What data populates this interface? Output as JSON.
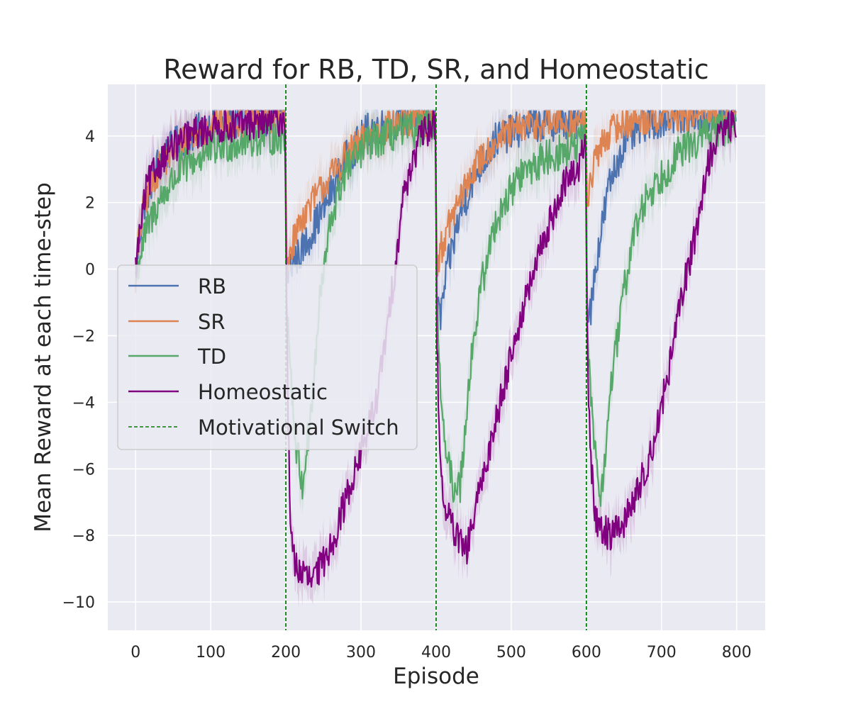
{
  "chart_data": {
    "type": "line",
    "title": "Reward for RB, TD, SR, and Homeostatic",
    "xlabel": "Episode",
    "ylabel": "Mean Reward at each time-step",
    "xlim": [
      -37,
      838
    ],
    "ylim": [
      -10.85,
      5.55
    ],
    "xticks": [
      0,
      100,
      200,
      300,
      400,
      500,
      600,
      700,
      800
    ],
    "xtick_labels": [
      "0",
      "100",
      "200",
      "300",
      "400",
      "500",
      "600",
      "700",
      "800"
    ],
    "yticks": [
      -10,
      -8,
      -6,
      -4,
      -2,
      0,
      2,
      4
    ],
    "ytick_labels": [
      "−10",
      "−8",
      "−6",
      "−4",
      "−2",
      "0",
      "2",
      "4"
    ],
    "grid": true,
    "legend_position": "center-left",
    "series": [
      {
        "name": "RB",
        "color": "#4c72b0",
        "keypoints": [
          [
            0,
            -0.3
          ],
          [
            5,
            1.0
          ],
          [
            12,
            2.0
          ],
          [
            30,
            3.2
          ],
          [
            60,
            3.9
          ],
          [
            100,
            4.3
          ],
          [
            150,
            4.5
          ],
          [
            199,
            4.6
          ],
          [
            201,
            -0.3
          ],
          [
            205,
            0.1
          ],
          [
            220,
            0.5
          ],
          [
            250,
            1.8
          ],
          [
            280,
            3.3
          ],
          [
            310,
            4.2
          ],
          [
            350,
            4.5
          ],
          [
            399,
            4.6
          ],
          [
            401,
            -1.0
          ],
          [
            405,
            -1.5
          ],
          [
            415,
            0.0
          ],
          [
            430,
            1.5
          ],
          [
            450,
            2.8
          ],
          [
            480,
            3.9
          ],
          [
            520,
            4.3
          ],
          [
            560,
            4.4
          ],
          [
            599,
            4.4
          ],
          [
            601,
            -1.0
          ],
          [
            605,
            -1.3
          ],
          [
            615,
            0.5
          ],
          [
            630,
            2.5
          ],
          [
            650,
            3.8
          ],
          [
            680,
            4.4
          ],
          [
            720,
            4.6
          ],
          [
            799,
            4.6
          ]
        ],
        "noise": 0.55
      },
      {
        "name": "SR",
        "color": "#dd8452",
        "keypoints": [
          [
            0,
            -0.3
          ],
          [
            5,
            1.0
          ],
          [
            12,
            2.0
          ],
          [
            30,
            3.0
          ],
          [
            60,
            3.8
          ],
          [
            100,
            4.3
          ],
          [
            150,
            4.5
          ],
          [
            199,
            4.6
          ],
          [
            201,
            0.2
          ],
          [
            205,
            0.5
          ],
          [
            220,
            1.5
          ],
          [
            250,
            2.5
          ],
          [
            280,
            3.4
          ],
          [
            310,
            4.0
          ],
          [
            350,
            4.4
          ],
          [
            399,
            4.5
          ],
          [
            401,
            0.1
          ],
          [
            405,
            0.5
          ],
          [
            420,
            1.5
          ],
          [
            450,
            3.0
          ],
          [
            480,
            3.9
          ],
          [
            520,
            4.3
          ],
          [
            560,
            4.4
          ],
          [
            599,
            4.4
          ],
          [
            601,
            2.0
          ],
          [
            605,
            2.6
          ],
          [
            615,
            3.5
          ],
          [
            630,
            4.1
          ],
          [
            650,
            4.4
          ],
          [
            700,
            4.6
          ],
          [
            799,
            4.7
          ]
        ],
        "noise": 0.5
      },
      {
        "name": "TD",
        "color": "#55a868",
        "keypoints": [
          [
            0,
            -0.3
          ],
          [
            5,
            0.3
          ],
          [
            12,
            1.0
          ],
          [
            30,
            2.0
          ],
          [
            60,
            3.0
          ],
          [
            100,
            3.6
          ],
          [
            150,
            3.9
          ],
          [
            199,
            4.0
          ],
          [
            201,
            -1.0
          ],
          [
            205,
            -2.5
          ],
          [
            212,
            -5.0
          ],
          [
            222,
            -6.5
          ],
          [
            235,
            -4.0
          ],
          [
            245,
            -1.0
          ],
          [
            260,
            1.5
          ],
          [
            280,
            3.0
          ],
          [
            310,
            3.8
          ],
          [
            350,
            4.1
          ],
          [
            399,
            4.3
          ],
          [
            401,
            -1.0
          ],
          [
            405,
            -3.0
          ],
          [
            412,
            -5.5
          ],
          [
            422,
            -6.5
          ],
          [
            432,
            -6.5
          ],
          [
            445,
            -3.0
          ],
          [
            460,
            -0.5
          ],
          [
            480,
            1.5
          ],
          [
            510,
            2.8
          ],
          [
            550,
            3.4
          ],
          [
            580,
            3.6
          ],
          [
            599,
            3.9
          ],
          [
            601,
            -1.5
          ],
          [
            605,
            -3.5
          ],
          [
            612,
            -5.5
          ],
          [
            620,
            -7.0
          ],
          [
            630,
            -4.0
          ],
          [
            645,
            -1.5
          ],
          [
            660,
            0.8
          ],
          [
            680,
            2.2
          ],
          [
            720,
            3.4
          ],
          [
            760,
            4.1
          ],
          [
            799,
            4.3
          ]
        ],
        "noise": 0.55
      },
      {
        "name": "Homeostatic",
        "color": "#800080",
        "keypoints": [
          [
            0,
            0.0
          ],
          [
            5,
            1.0
          ],
          [
            15,
            2.5
          ],
          [
            40,
            3.5
          ],
          [
            80,
            4.1
          ],
          [
            120,
            4.3
          ],
          [
            160,
            4.4
          ],
          [
            199,
            4.5
          ],
          [
            201,
            -1.0
          ],
          [
            203,
            -4.5
          ],
          [
            207,
            -8.3
          ],
          [
            215,
            -9.0
          ],
          [
            235,
            -9.4
          ],
          [
            250,
            -8.8
          ],
          [
            265,
            -8.0
          ],
          [
            280,
            -6.9
          ],
          [
            300,
            -5.5
          ],
          [
            320,
            -4.0
          ],
          [
            335,
            -1.8
          ],
          [
            345,
            0.0
          ],
          [
            355,
            2.0
          ],
          [
            365,
            3.0
          ],
          [
            380,
            4.0
          ],
          [
            399,
            4.4
          ],
          [
            401,
            -2.0
          ],
          [
            405,
            -5.5
          ],
          [
            410,
            -7.0
          ],
          [
            425,
            -8.0
          ],
          [
            440,
            -8.5
          ],
          [
            460,
            -6.5
          ],
          [
            480,
            -4.5
          ],
          [
            500,
            -2.5
          ],
          [
            525,
            -0.5
          ],
          [
            545,
            1.0
          ],
          [
            570,
            2.5
          ],
          [
            590,
            3.1
          ],
          [
            599,
            3.8
          ],
          [
            601,
            -2.0
          ],
          [
            605,
            -5.5
          ],
          [
            612,
            -7.5
          ],
          [
            630,
            -8.0
          ],
          [
            650,
            -7.6
          ],
          [
            670,
            -6.6
          ],
          [
            690,
            -5.2
          ],
          [
            710,
            -3.0
          ],
          [
            730,
            -0.5
          ],
          [
            745,
            1.0
          ],
          [
            760,
            3.0
          ],
          [
            775,
            4.0
          ],
          [
            799,
            4.4
          ]
        ],
        "noise": 0.5
      }
    ],
    "switch_line": {
      "name": "Motivational Switch",
      "color": "#008000",
      "x": [
        200,
        400,
        600
      ]
    }
  }
}
